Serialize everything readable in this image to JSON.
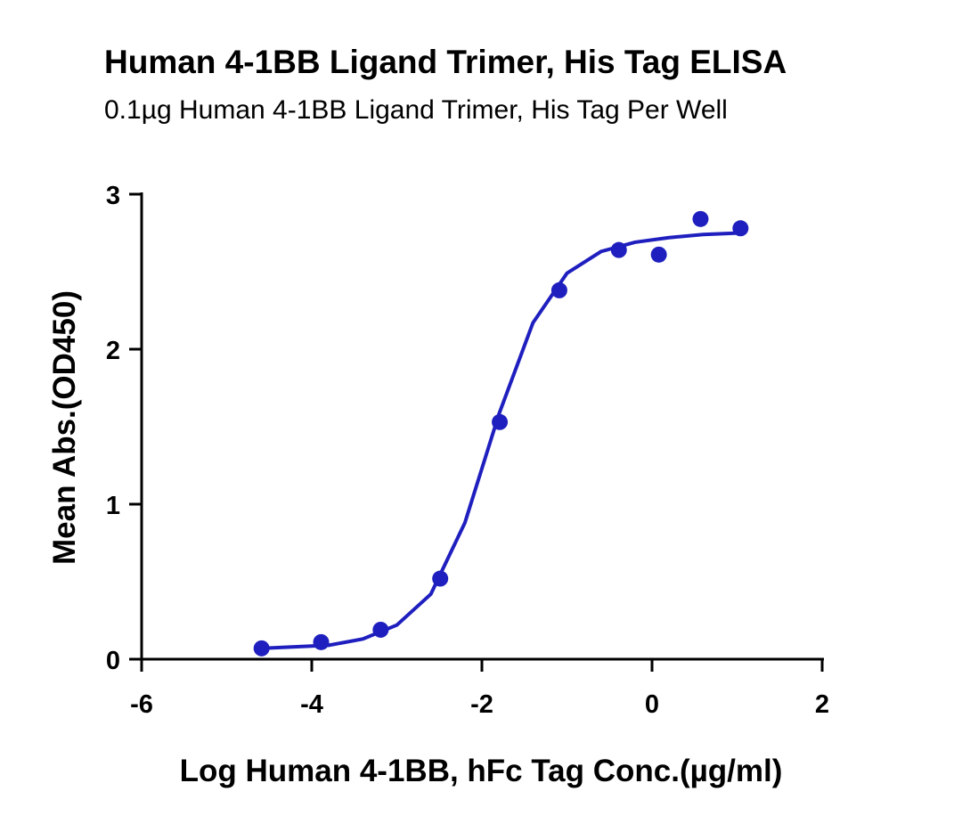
{
  "chart_data": {
    "type": "scatter",
    "title": "Human 4-1BB Ligand Trimer, His Tag ELISA",
    "subtitle": "0.1µg Human 4-1BB Ligand Trimer, His Tag Per Well",
    "x_label": "Log Human 4-1BB, hFc Tag Conc.(µg/ml)",
    "y_label": "Mean Abs.(OD450)",
    "color": "#1f1fbf",
    "x": [
      -4.59,
      -3.89,
      -3.19,
      -2.49,
      -1.79,
      -1.09,
      -0.39,
      0.08,
      0.57,
      1.04
    ],
    "values": [
      0.07,
      0.11,
      0.19,
      0.52,
      1.53,
      2.38,
      2.64,
      2.61,
      2.84,
      2.78
    ],
    "fit": {
      "x": [
        -4.6,
        -4.2,
        -3.8,
        -3.4,
        -3.0,
        -2.6,
        -2.2,
        -1.8,
        -1.4,
        -1.0,
        -0.6,
        -0.2,
        0.2,
        0.6,
        1.04
      ],
      "values": [
        0.07,
        0.08,
        0.09,
        0.13,
        0.22,
        0.42,
        0.88,
        1.58,
        2.17,
        2.49,
        2.63,
        2.69,
        2.72,
        2.74,
        2.75
      ]
    },
    "xlim": [
      -6,
      2
    ],
    "xticks": [
      -6,
      -4,
      -2,
      0,
      2
    ],
    "ylim": [
      0,
      3
    ],
    "yticks": [
      0,
      1,
      2,
      3
    ]
  }
}
